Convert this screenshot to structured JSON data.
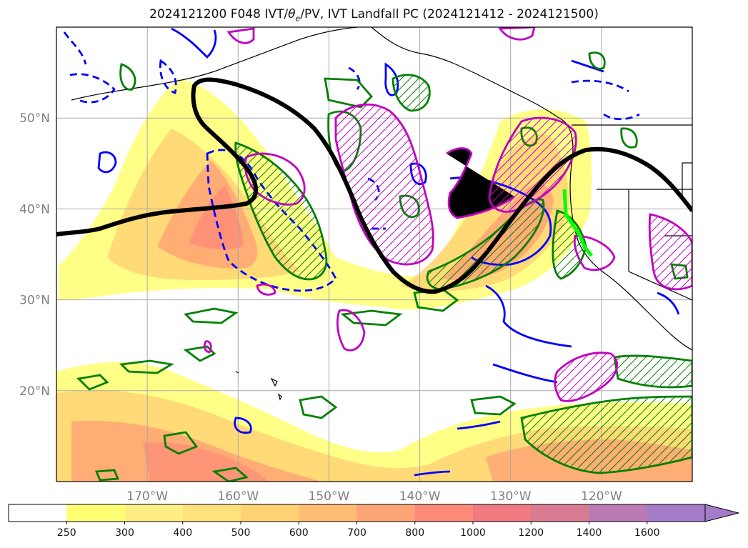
{
  "title": {
    "prefix": "2024121200 F048 IVT/",
    "theta": "θ",
    "sub": "e",
    "suffix": "/PV, IVT Landfall PC (2024121412 - 2024121500)"
  },
  "map": {
    "lon_ticks": [
      {
        "lon": -170,
        "label": "170°W"
      },
      {
        "lon": -160,
        "label": "160°W"
      },
      {
        "lon": -150,
        "label": "150°W"
      },
      {
        "lon": -140,
        "label": "140°W"
      },
      {
        "lon": -130,
        "label": "130°W"
      },
      {
        "lon": -120,
        "label": "120°W"
      }
    ],
    "lat_ticks": [
      {
        "lat": 20,
        "label": "20°N"
      },
      {
        "lat": 30,
        "label": "30°N"
      },
      {
        "lat": 40,
        "label": "40°N"
      },
      {
        "lat": 50,
        "label": "50°N"
      }
    ],
    "grid": true,
    "colors": {
      "ivt_fill": "#ff8c80",
      "pv_positive": "#008000",
      "pv_negative": "#0000ff",
      "theta_e": "#c000c0",
      "landfall_pc": "#00ff00",
      "jet_axis": "#000000",
      "coast": "#000000"
    }
  },
  "colorbar": {
    "extend": "max",
    "levels": [
      {
        "label": "250",
        "color": "#ffffff"
      },
      {
        "label": "300",
        "color": "#ffff73"
      },
      {
        "label": "400",
        "color": "#ffef82"
      },
      {
        "label": "500",
        "color": "#ffe27c"
      },
      {
        "label": "600",
        "color": "#ffd373"
      },
      {
        "label": "700",
        "color": "#ffbd73"
      },
      {
        "label": "800",
        "color": "#ffa475"
      },
      {
        "label": "1000",
        "color": "#ff8a78"
      },
      {
        "label": "1200",
        "color": "#ef7a80"
      },
      {
        "label": "1400",
        "color": "#d97b92"
      },
      {
        "label": "1600",
        "color": "#bb7ab5"
      },
      {
        "label": "",
        "color": "#a47cc8"
      }
    ],
    "extend_color": "#a47cc8"
  }
}
